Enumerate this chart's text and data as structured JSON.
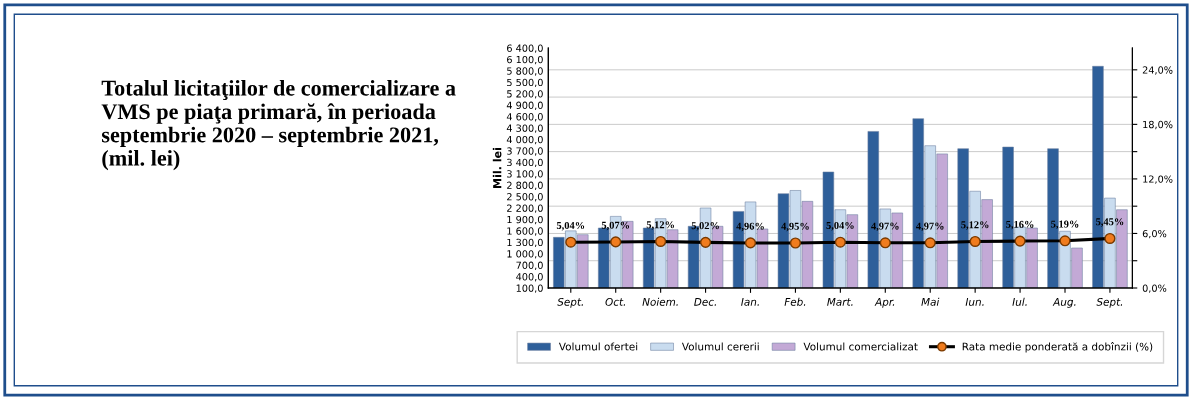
{
  "chart_data": {
    "type": "bar",
    "title": "Totalul licitaţiilor de comercializare a VMS pe piaţa primară, în perioada septembrie 2020 – septembrie 2021, (mil. lei)",
    "ylabel": "Mil. lei",
    "categories": [
      "Sept.",
      "Oct.",
      "Noiem.",
      "Dec.",
      "Ian.",
      "Feb.",
      "Mart.",
      "Apr.",
      "Mai",
      "Iun.",
      "Iul.",
      "Aug.",
      "Sept."
    ],
    "series": [
      {
        "name": "Volumul ofertei",
        "color": "#2e5f9a",
        "values": [
          1430,
          1675,
          1675,
          1720,
          2110,
          2575,
          3145,
          4210,
          4545,
          3757,
          3800,
          3757,
          5920
        ]
      },
      {
        "name": "Volumul cererii",
        "color": "#c9dcef",
        "values": [
          1600,
          1980,
          1920,
          2200,
          2360,
          2660,
          2155,
          2175,
          3835,
          2640,
          1700,
          1590,
          2460
        ]
      },
      {
        "name": "Volumul comercializat",
        "color": "#c3a9d6",
        "values": [
          1500,
          1850,
          1630,
          1720,
          1650,
          2375,
          2025,
          2070,
          3620,
          2420,
          1675,
          1150,
          2155
        ]
      },
      {
        "name": "Rata medie ponderată a dobînzii (%)",
        "type": "line",
        "axis": "y2",
        "color": "#000000",
        "values": [
          5.04,
          5.07,
          5.12,
          5.02,
          4.96,
          4.95,
          5.04,
          4.97,
          4.97,
          5.12,
          5.16,
          5.19,
          5.45
        ],
        "value_labels": [
          "5,04%",
          "5,07%",
          "5,12%",
          "5,02%",
          "4,96%",
          "4,95%",
          "5,04%",
          "4,97%",
          "4,97%",
          "5,12%",
          "5,16%",
          "5,19%",
          "5,45%"
        ]
      }
    ],
    "marker": "circle",
    "ylim": [
      100,
      6400
    ],
    "yticks": [
      {
        "value": 100,
        "label": "100,0"
      },
      {
        "value": 400,
        "label": "400,0"
      },
      {
        "value": 700,
        "label": "700,0"
      },
      {
        "value": 1000,
        "label": "1 000,0"
      },
      {
        "value": 1300,
        "label": "1 300,0"
      },
      {
        "value": 1600,
        "label": "1 600,0"
      },
      {
        "value": 1900,
        "label": "1 900,0"
      },
      {
        "value": 2200,
        "label": "2 200,0"
      },
      {
        "value": 2500,
        "label": "2 500,0"
      },
      {
        "value": 2800,
        "label": "2 800,0"
      },
      {
        "value": 3100,
        "label": "3 100,0"
      },
      {
        "value": 3400,
        "label": "3 400,0"
      },
      {
        "value": 3700,
        "label": "3 700,0"
      },
      {
        "value": 4000,
        "label": "4 000,0"
      },
      {
        "value": 4300,
        "label": "4 300,0"
      },
      {
        "value": 4600,
        "label": "4 600,0"
      },
      {
        "value": 4900,
        "label": "4 900,0"
      },
      {
        "value": 5200,
        "label": "5 200,0"
      },
      {
        "value": 5500,
        "label": "5 500,0"
      },
      {
        "value": 5800,
        "label": "5 800,0"
      },
      {
        "value": 6100,
        "label": "6 100,0"
      },
      {
        "value": 6400,
        "label": "6 400,0"
      }
    ],
    "y2lim": [
      0,
      26.4
    ],
    "y2ticks": [
      {
        "value": 0,
        "label": "0,0%"
      },
      {
        "value": 3,
        "label": null
      },
      {
        "value": 6,
        "label": "6,0%"
      },
      {
        "value": 9,
        "label": null
      },
      {
        "value": 12,
        "label": "12,0%"
      },
      {
        "value": 15,
        "label": null
      },
      {
        "value": 18,
        "label": "18,0%"
      },
      {
        "value": 21,
        "label": null
      },
      {
        "value": 24,
        "label": "24,0%"
      }
    ],
    "grid": true,
    "legend": "bottom"
  }
}
